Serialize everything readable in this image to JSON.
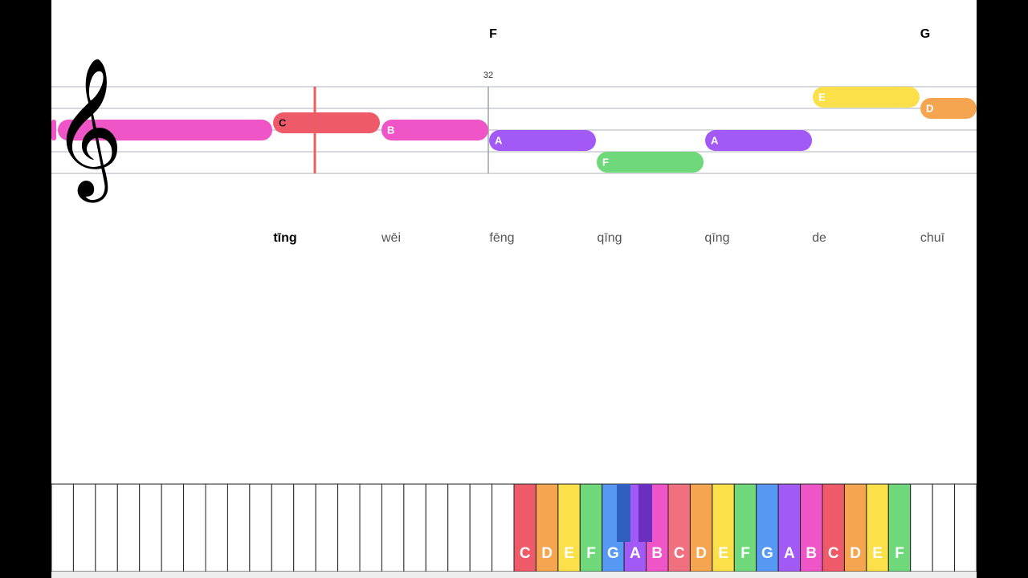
{
  "chords": [
    "F",
    "G"
  ],
  "measure_number": "32",
  "notes": [
    "C",
    "B",
    "A",
    "F",
    "A",
    "E",
    "D"
  ],
  "lyrics": [
    "tīng",
    "wēi",
    "fēng",
    "qīng",
    "qīng",
    "de",
    "chuī"
  ],
  "keyboard": {
    "labels": [
      "C",
      "D",
      "E",
      "F",
      "G",
      "A",
      "B",
      "C",
      "D",
      "E",
      "F",
      "G",
      "A",
      "B",
      "C",
      "D",
      "E",
      "F"
    ]
  }
}
